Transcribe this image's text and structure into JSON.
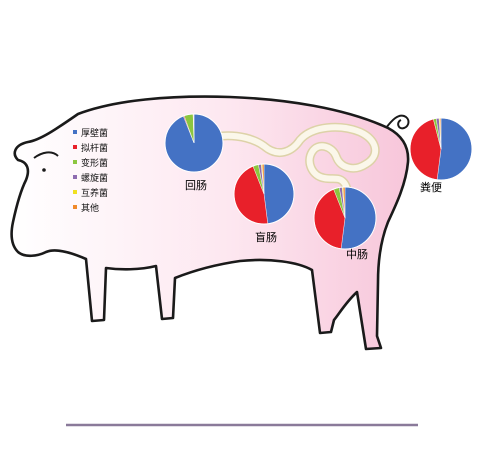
{
  "legend": {
    "items": [
      {
        "label": "厚壁菌",
        "color": "#4472c4"
      },
      {
        "label": "拟杆菌",
        "color": "#e8202a"
      },
      {
        "label": "变形菌",
        "color": "#8cc63f"
      },
      {
        "label": "螺旋菌",
        "color": "#8e6cb0"
      },
      {
        "label": "互养菌",
        "color": "#f0e020"
      },
      {
        "label": "其他",
        "color": "#f08a2a"
      }
    ]
  },
  "labels": {
    "ileum": "回肠",
    "cecum": "盲肠",
    "colon": "中肠",
    "feces": "粪便"
  },
  "chart_data": [
    {
      "type": "pie",
      "name": "回肠",
      "slices": [
        {
          "label": "厚壁菌",
          "value": 94
        },
        {
          "label": "拟杆菌",
          "value": 0.5
        },
        {
          "label": "变形菌",
          "value": 5
        },
        {
          "label": "螺旋菌",
          "value": 0.2
        },
        {
          "label": "互养菌",
          "value": 0.1
        },
        {
          "label": "其他",
          "value": 0.2
        }
      ]
    },
    {
      "type": "pie",
      "name": "盲肠",
      "slices": [
        {
          "label": "厚壁菌",
          "value": 48
        },
        {
          "label": "拟杆菌",
          "value": 46
        },
        {
          "label": "变形菌",
          "value": 3
        },
        {
          "label": "螺旋菌",
          "value": 1.5
        },
        {
          "label": "互养菌",
          "value": 0.5
        },
        {
          "label": "其他",
          "value": 1
        }
      ]
    },
    {
      "type": "pie",
      "name": "中肠",
      "slices": [
        {
          "label": "厚壁菌",
          "value": 52
        },
        {
          "label": "拟杆菌",
          "value": 42
        },
        {
          "label": "变形菌",
          "value": 3
        },
        {
          "label": "螺旋菌",
          "value": 1.5
        },
        {
          "label": "互养菌",
          "value": 0.5
        },
        {
          "label": "其他",
          "value": 1
        }
      ]
    },
    {
      "type": "pie",
      "name": "粪便",
      "slices": [
        {
          "label": "厚壁菌",
          "value": 52
        },
        {
          "label": "拟杆菌",
          "value": 44
        },
        {
          "label": "变形菌",
          "value": 1.5
        },
        {
          "label": "螺旋菌",
          "value": 1.5
        },
        {
          "label": "互养菌",
          "value": 0.5
        },
        {
          "label": "其他",
          "value": 0.5
        }
      ]
    }
  ]
}
